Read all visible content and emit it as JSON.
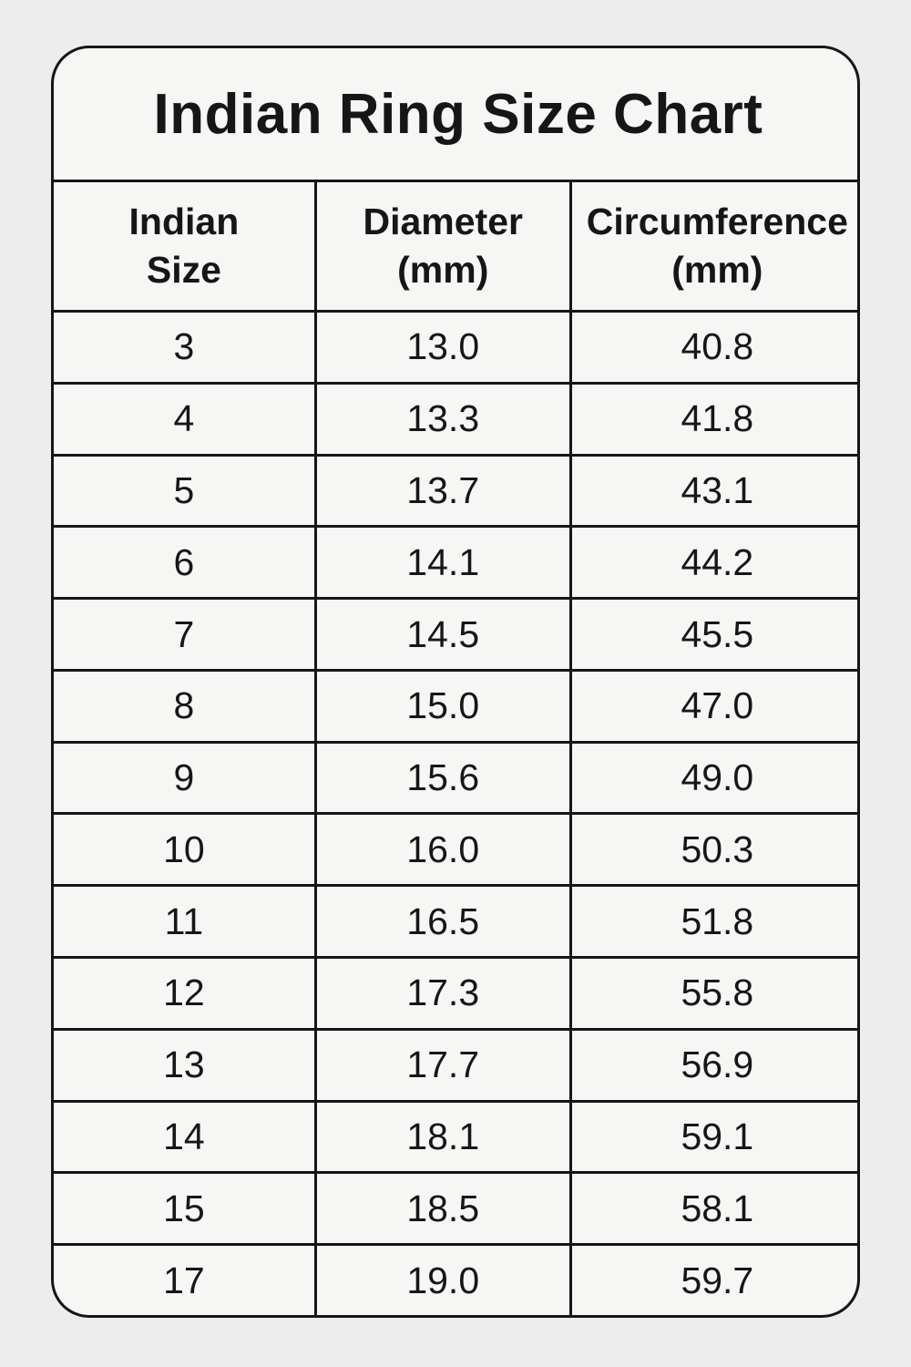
{
  "page": {
    "title": "Indian Ring Size Chart"
  },
  "table": {
    "columns": [
      {
        "line1": "Indian",
        "line2": "Size"
      },
      {
        "line1": "Diameter",
        "line2": "(mm)"
      },
      {
        "line1": "Circumference",
        "line2": "(mm)"
      }
    ],
    "rows": [
      [
        "3",
        "13.0",
        "40.8"
      ],
      [
        "4",
        "13.3",
        "41.8"
      ],
      [
        "5",
        "13.7",
        "43.1"
      ],
      [
        "6",
        "14.1",
        "44.2"
      ],
      [
        "7",
        "14.5",
        "45.5"
      ],
      [
        "8",
        "15.0",
        "47.0"
      ],
      [
        "9",
        "15.6",
        "49.0"
      ],
      [
        "10",
        "16.0",
        "50.3"
      ],
      [
        "11",
        "16.5",
        "51.8"
      ],
      [
        "12",
        "17.3",
        "55.8"
      ],
      [
        "13",
        "17.7",
        "56.9"
      ],
      [
        "14",
        "18.1",
        "59.1"
      ],
      [
        "15",
        "18.5",
        "58.1"
      ],
      [
        "17",
        "19.0",
        "59.7"
      ]
    ]
  },
  "chart_data": {
    "type": "table",
    "title": "Indian Ring Size Chart",
    "columns": [
      "Indian Size",
      "Diameter (mm)",
      "Circumference (mm)"
    ],
    "rows": [
      [
        3,
        13.0,
        40.8
      ],
      [
        4,
        13.3,
        41.8
      ],
      [
        5,
        13.7,
        43.1
      ],
      [
        6,
        14.1,
        44.2
      ],
      [
        7,
        14.5,
        45.5
      ],
      [
        8,
        15.0,
        47.0
      ],
      [
        9,
        15.6,
        49.0
      ],
      [
        10,
        16.0,
        50.3
      ],
      [
        11,
        16.5,
        51.8
      ],
      [
        12,
        17.3,
        55.8
      ],
      [
        13,
        17.7,
        56.9
      ],
      [
        14,
        18.1,
        59.1
      ],
      [
        15,
        18.5,
        58.1
      ],
      [
        17,
        19.0,
        59.7
      ]
    ]
  },
  "colors": {
    "page_background": "#ededed",
    "cell_background": "#f6f6f5",
    "border": "#161616",
    "text": "#161616"
  }
}
